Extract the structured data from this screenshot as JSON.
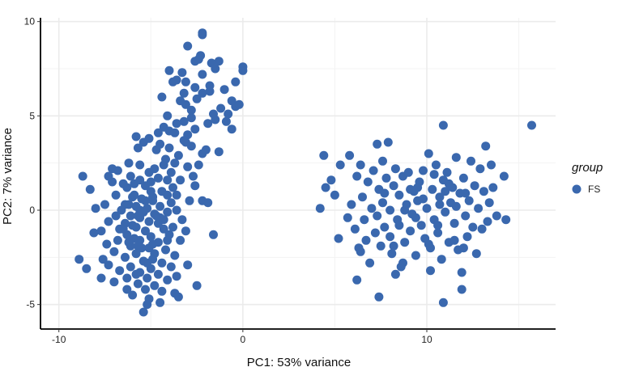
{
  "chart_data": {
    "type": "scatter",
    "title": "",
    "xlabel": "PC1: 53% variance",
    "ylabel": "PC2: 7% variance",
    "xlim": [
      -11,
      17
    ],
    "ylim": [
      -6.3,
      10.2
    ],
    "xticks": [
      -10,
      0,
      10
    ],
    "yticks": [
      -5,
      0,
      5,
      10
    ],
    "grid": true,
    "legend": {
      "title": "group",
      "position": "right",
      "entries": [
        {
          "label": "FS",
          "color": "#3a68ae"
        }
      ]
    },
    "series": [
      {
        "name": "FS",
        "color": "#3a68ae",
        "points": [
          [
            -2.2,
            9.4
          ],
          [
            -2.2,
            9.3
          ],
          [
            -3.0,
            8.7
          ],
          [
            -2.3,
            8.2
          ],
          [
            -2.4,
            8.0
          ],
          [
            -1.3,
            7.9
          ],
          [
            -2.6,
            7.9
          ],
          [
            -1.7,
            7.8
          ],
          [
            0.0,
            7.6
          ],
          [
            0.0,
            7.4
          ],
          [
            -1.5,
            7.5
          ],
          [
            -4.0,
            7.4
          ],
          [
            -3.3,
            7.3
          ],
          [
            -2.2,
            7.2
          ],
          [
            -3.6,
            6.9
          ],
          [
            -3.8,
            6.8
          ],
          [
            -3.1,
            6.8
          ],
          [
            -0.4,
            6.8
          ],
          [
            -1.8,
            6.6
          ],
          [
            -2.6,
            6.5
          ],
          [
            -1.8,
            6.3
          ],
          [
            -1.0,
            6.4
          ],
          [
            -2.2,
            6.2
          ],
          [
            -3.2,
            6.2
          ],
          [
            -4.4,
            6.0
          ],
          [
            -3.4,
            5.8
          ],
          [
            -2.5,
            5.9
          ],
          [
            -0.6,
            5.8
          ],
          [
            -0.4,
            5.5
          ],
          [
            -0.2,
            5.6
          ],
          [
            -3.1,
            5.6
          ],
          [
            -1.2,
            5.4
          ],
          [
            -2.8,
            5.3
          ],
          [
            -0.8,
            5.1
          ],
          [
            -4.1,
            5.0
          ],
          [
            -1.6,
            5.1
          ],
          [
            -1.5,
            4.8
          ],
          [
            -0.9,
            4.7
          ],
          [
            -3.6,
            4.6
          ],
          [
            -3.2,
            4.7
          ],
          [
            -2.8,
            4.9
          ],
          [
            -1.9,
            4.6
          ],
          [
            -2.6,
            4.3
          ],
          [
            -4.3,
            4.4
          ],
          [
            -4.0,
            4.2
          ],
          [
            -3.7,
            4.1
          ],
          [
            -3.0,
            4.0
          ],
          [
            -4.6,
            4.1
          ],
          [
            -0.6,
            4.3
          ],
          [
            -5.1,
            3.8
          ],
          [
            -5.8,
            3.9
          ],
          [
            -3.2,
            3.7
          ],
          [
            -5.4,
            3.6
          ],
          [
            -4.5,
            3.5
          ],
          [
            -2.8,
            3.4
          ],
          [
            -4.0,
            3.3
          ],
          [
            -1.3,
            3.1
          ],
          [
            -4.7,
            3.2
          ],
          [
            -2.2,
            3.0
          ],
          [
            -3.5,
            2.9
          ],
          [
            -5.7,
            3.3
          ],
          [
            -6.2,
            2.5
          ],
          [
            -4.2,
            2.7
          ],
          [
            -5.6,
            2.4
          ],
          [
            -3.7,
            2.5
          ],
          [
            -2.4,
            2.4
          ],
          [
            -3.0,
            2.3
          ],
          [
            -7.1,
            2.2
          ],
          [
            -6.8,
            2.1
          ],
          [
            -4.8,
            2.2
          ],
          [
            -5.1,
            2.0
          ],
          [
            -7.3,
            1.8
          ],
          [
            -2.7,
            1.8
          ],
          [
            -8.7,
            1.8
          ],
          [
            -6.1,
            1.8
          ],
          [
            -4.6,
            1.7
          ],
          [
            -4.1,
            1.6
          ],
          [
            -3.4,
            1.6
          ],
          [
            -7.1,
            1.5
          ],
          [
            -6.5,
            1.4
          ],
          [
            -5.9,
            1.4
          ],
          [
            -5.3,
            1.3
          ],
          [
            -3.8,
            1.2
          ],
          [
            -2.6,
            1.3
          ],
          [
            -6.3,
            1.2
          ],
          [
            -8.3,
            1.1
          ],
          [
            -5.0,
            1.0
          ],
          [
            -4.4,
            1.0
          ],
          [
            -3.6,
            0.8
          ],
          [
            -6.9,
            0.8
          ],
          [
            -6.0,
            0.7
          ],
          [
            -5.5,
            0.6
          ],
          [
            -4.9,
            0.5
          ],
          [
            -3.9,
            0.4
          ],
          [
            -2.9,
            0.5
          ],
          [
            -2.2,
            0.5
          ],
          [
            -1.9,
            0.4
          ],
          [
            -7.5,
            0.3
          ],
          [
            -6.4,
            0.3
          ],
          [
            -5.8,
            0.2
          ],
          [
            -5.2,
            0.1
          ],
          [
            -4.5,
            0.2
          ],
          [
            -3.6,
            0.0
          ],
          [
            -8.0,
            0.1
          ],
          [
            -6.6,
            0.0
          ],
          [
            -5.4,
            -0.1
          ],
          [
            -4.8,
            -0.2
          ],
          [
            -4.1,
            -0.1
          ],
          [
            -6.9,
            -0.3
          ],
          [
            -6.1,
            -0.3
          ],
          [
            -5.6,
            -0.4
          ],
          [
            -4.3,
            -0.5
          ],
          [
            -3.3,
            -0.5
          ],
          [
            -7.3,
            -0.6
          ],
          [
            -6.4,
            -0.7
          ],
          [
            -5.1,
            -0.6
          ],
          [
            -4.6,
            -0.7
          ],
          [
            -3.8,
            -0.9
          ],
          [
            -6.7,
            -1.0
          ],
          [
            -5.8,
            -0.9
          ],
          [
            -5.3,
            -1.1
          ],
          [
            -4.3,
            -1.0
          ],
          [
            -7.7,
            -1.1
          ],
          [
            -3.1,
            -1.1
          ],
          [
            -8.1,
            -1.2
          ],
          [
            -6.3,
            -1.3
          ],
          [
            -5.0,
            -1.4
          ],
          [
            -4.0,
            -1.3
          ],
          [
            -1.6,
            -1.3
          ],
          [
            -6.8,
            -1.6
          ],
          [
            -5.6,
            -1.6
          ],
          [
            -4.6,
            -1.7
          ],
          [
            -3.4,
            -1.6
          ],
          [
            -7.4,
            -1.8
          ],
          [
            -6.1,
            -1.9
          ],
          [
            -5.1,
            -2.0
          ],
          [
            -4.2,
            -2.1
          ],
          [
            -7.0,
            -2.2
          ],
          [
            -5.8,
            -2.3
          ],
          [
            -4.8,
            -2.3
          ],
          [
            -3.7,
            -2.4
          ],
          [
            -6.4,
            -2.5
          ],
          [
            -7.6,
            -2.6
          ],
          [
            -5.4,
            -2.7
          ],
          [
            -4.4,
            -2.8
          ],
          [
            -8.9,
            -2.6
          ],
          [
            -7.3,
            -2.9
          ],
          [
            -6.1,
            -3.0
          ],
          [
            -5.0,
            -3.1
          ],
          [
            -3.9,
            -3.0
          ],
          [
            -3.0,
            -2.9
          ],
          [
            -8.5,
            -3.1
          ],
          [
            -6.7,
            -3.2
          ],
          [
            -5.6,
            -3.3
          ],
          [
            -4.6,
            -3.4
          ],
          [
            -7.7,
            -3.6
          ],
          [
            -6.3,
            -3.6
          ],
          [
            -5.2,
            -3.6
          ],
          [
            -4.1,
            -3.7
          ],
          [
            -3.6,
            -3.5
          ],
          [
            -7.0,
            -3.8
          ],
          [
            -5.7,
            -3.9
          ],
          [
            -4.8,
            -4.0
          ],
          [
            -2.5,
            -4.0
          ],
          [
            -6.3,
            -4.2
          ],
          [
            -5.3,
            -4.2
          ],
          [
            -4.4,
            -4.3
          ],
          [
            -3.7,
            -4.4
          ],
          [
            -6.0,
            -4.5
          ],
          [
            -3.5,
            -4.6
          ],
          [
            -5.1,
            -4.7
          ],
          [
            -4.5,
            -4.9
          ],
          [
            -5.2,
            -5.0
          ],
          [
            -5.4,
            -5.4
          ],
          [
            -5.7,
            -0.3
          ],
          [
            -5.9,
            -1.5
          ],
          [
            -5.5,
            -2.0
          ],
          [
            -5.9,
            0.8
          ],
          [
            -5.6,
            1.6
          ],
          [
            -5.2,
            -2.8
          ],
          [
            -4.9,
            -1.8
          ],
          [
            -5.3,
            0.5
          ],
          [
            -5.0,
            1.5
          ],
          [
            -4.7,
            -0.3
          ],
          [
            -6.0,
            -0.8
          ],
          [
            -6.2,
            0.3
          ],
          [
            -6.5,
            -1.0
          ],
          [
            -5.7,
            -1.9
          ],
          [
            -4.9,
            -2.6
          ],
          [
            -5.8,
            -3.4
          ],
          [
            -4.1,
            0.8
          ],
          [
            -3.9,
            2.0
          ],
          [
            -4.3,
            2.4
          ],
          [
            -2.0,
            3.2
          ],
          [
            -3.1,
            3.6
          ],
          [
            -4.5,
            -0.4
          ],
          [
            -4.1,
            -1.6
          ],
          [
            -4.9,
            0.7
          ],
          [
            -5.6,
            0.0
          ],
          [
            -6.2,
            -1.7
          ],
          [
            4.2,
            0.1
          ],
          [
            4.5,
            1.2
          ],
          [
            4.8,
            1.6
          ],
          [
            4.4,
            2.9
          ],
          [
            5.0,
            0.8
          ],
          [
            5.3,
            2.4
          ],
          [
            5.2,
            -1.5
          ],
          [
            5.7,
            -0.4
          ],
          [
            5.8,
            2.9
          ],
          [
            5.9,
            0.3
          ],
          [
            6.1,
            -1.0
          ],
          [
            6.2,
            1.8
          ],
          [
            6.3,
            -2.0
          ],
          [
            6.4,
            2.4
          ],
          [
            6.5,
            0.7
          ],
          [
            6.6,
            -0.5
          ],
          [
            6.7,
            -1.6
          ],
          [
            6.8,
            1.5
          ],
          [
            6.9,
            -2.8
          ],
          [
            7.0,
            0.1
          ],
          [
            7.1,
            2.1
          ],
          [
            7.2,
            -1.2
          ],
          [
            7.3,
            -0.3
          ],
          [
            7.3,
            3.5
          ],
          [
            7.4,
            1.1
          ],
          [
            7.5,
            -1.9
          ],
          [
            7.6,
            0.4
          ],
          [
            7.6,
            2.6
          ],
          [
            7.7,
            -0.9
          ],
          [
            7.8,
            1.7
          ],
          [
            7.9,
            3.6
          ],
          [
            8.0,
            -1.4
          ],
          [
            8.0,
            0.0
          ],
          [
            8.1,
            -2.3
          ],
          [
            8.2,
            1.3
          ],
          [
            8.3,
            2.2
          ],
          [
            8.4,
            -0.5
          ],
          [
            8.5,
            0.8
          ],
          [
            8.6,
            -3.0
          ],
          [
            8.7,
            1.8
          ],
          [
            8.8,
            -1.7
          ],
          [
            8.9,
            0.3
          ],
          [
            9.0,
            2.0
          ],
          [
            9.1,
            -1.1
          ],
          [
            9.2,
            -0.2
          ],
          [
            9.3,
            1.0
          ],
          [
            9.4,
            -2.4
          ],
          [
            9.5,
            0.5
          ],
          [
            9.6,
            1.5
          ],
          [
            9.7,
            -0.8
          ],
          [
            9.8,
            2.1
          ],
          [
            9.9,
            -1.5
          ],
          [
            10.0,
            0.1
          ],
          [
            10.1,
            3.0
          ],
          [
            10.2,
            -2.0
          ],
          [
            10.3,
            1.1
          ],
          [
            10.4,
            -0.5
          ],
          [
            10.5,
            2.4
          ],
          [
            10.6,
            -1.2
          ],
          [
            10.7,
            0.7
          ],
          [
            10.8,
            -2.6
          ],
          [
            10.9,
            1.6
          ],
          [
            11.0,
            -0.1
          ],
          [
            11.1,
            2.0
          ],
          [
            11.2,
            -1.7
          ],
          [
            11.3,
            0.4
          ],
          [
            11.4,
            1.2
          ],
          [
            11.5,
            -0.7
          ],
          [
            11.6,
            2.8
          ],
          [
            11.7,
            -2.1
          ],
          [
            11.8,
            0.9
          ],
          [
            11.9,
            -3.3
          ],
          [
            12.0,
            1.7
          ],
          [
            12.1,
            -0.3
          ],
          [
            12.2,
            -1.4
          ],
          [
            12.3,
            0.5
          ],
          [
            12.4,
            2.6
          ],
          [
            12.5,
            -0.9
          ],
          [
            12.6,
            1.3
          ],
          [
            12.7,
            -2.3
          ],
          [
            12.8,
            0.1
          ],
          [
            12.9,
            2.2
          ],
          [
            13.0,
            -1.0
          ],
          [
            13.1,
            1.0
          ],
          [
            13.2,
            3.4
          ],
          [
            13.3,
            -0.6
          ],
          [
            13.4,
            0.4
          ],
          [
            13.5,
            2.4
          ],
          [
            13.6,
            1.2
          ],
          [
            13.8,
            -0.3
          ],
          [
            14.2,
            1.8
          ],
          [
            14.3,
            -0.5
          ],
          [
            15.7,
            4.5
          ],
          [
            10.9,
            4.5
          ],
          [
            9.1,
            1.1
          ],
          [
            8.5,
            -0.8
          ],
          [
            9.8,
            0.6
          ],
          [
            10.4,
            1.9
          ],
          [
            11.0,
            1.0
          ],
          [
            11.5,
            -1.6
          ],
          [
            8.2,
            -1.9
          ],
          [
            9.4,
            -0.4
          ],
          [
            10.1,
            -1.8
          ],
          [
            10.7,
            0.3
          ],
          [
            11.2,
            1.4
          ],
          [
            12.1,
            0.9
          ],
          [
            7.7,
            0.9
          ],
          [
            8.8,
            0.0
          ],
          [
            9.5,
            1.2
          ],
          [
            10.6,
            -0.8
          ],
          [
            12.0,
            -2.0
          ],
          [
            11.6,
            0.2
          ],
          [
            6.2,
            -3.7
          ],
          [
            7.4,
            -4.6
          ],
          [
            10.9,
            -4.9
          ],
          [
            11.9,
            -4.2
          ],
          [
            8.3,
            -3.4
          ],
          [
            6.4,
            -2.2
          ],
          [
            8.7,
            -2.8
          ],
          [
            10.2,
            -3.2
          ]
        ]
      }
    ]
  }
}
